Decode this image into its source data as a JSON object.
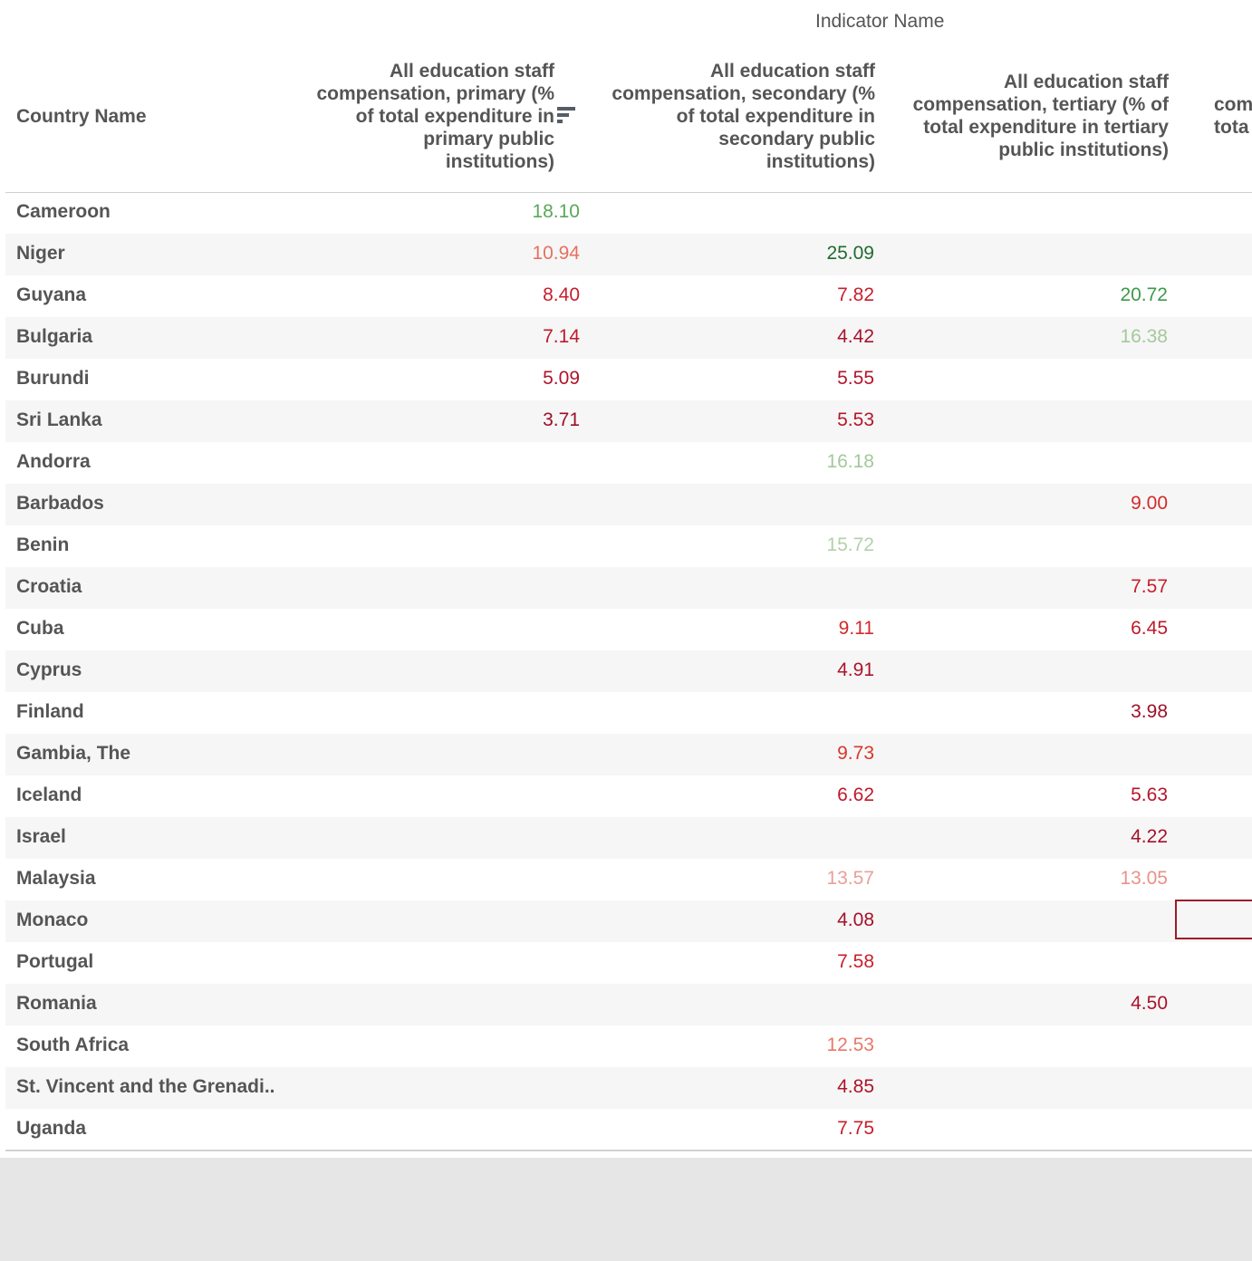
{
  "header": {
    "title": "Indicator Name",
    "row_header": "Country Name",
    "columns": [
      "All education staff compensation, primary (% of total expenditure in primary public institutions)",
      "All education staff compensation, secondary (% of total expenditure in secondary public institutions)",
      "All education staff compensation, tertiary (% of total expenditure in tertiary public institutions)",
      "com tota"
    ],
    "column_lines": [
      [
        "All education staff",
        "compensation, primary (%",
        "of total expenditure in",
        "primary public",
        "institutions)"
      ],
      [
        "All education staff",
        "compensation, secondary (%",
        "of total expenditure in",
        "secondary public",
        "institutions)"
      ],
      [
        "All education staff",
        "compensation, tertiary (% of",
        "total expenditure in tertiary",
        "public institutions)"
      ],
      [
        "com",
        "tota"
      ]
    ]
  },
  "colors": {
    "dark_green": "#1e7b3a",
    "green": "#5aa75a",
    "light_green": "#a3c99b",
    "light_red": "#e8a09a",
    "salmon": "#e8705f",
    "red": "#d9392b",
    "dark_red": "#b2182b"
  },
  "chart_data": {
    "type": "table",
    "title": "Indicator Name",
    "row_label": "Country Name",
    "columns": [
      "All education staff compensation, primary (% of total expenditure in primary public institutions)",
      "All education staff compensation, secondary (% of total expenditure in secondary public institutions)",
      "All education staff compensation, tertiary (% of total expenditure in tertiary public institutions)"
    ],
    "rows": [
      {
        "country": "Cameroon",
        "values": [
          "18.10",
          "",
          ""
        ],
        "colors": [
          "#5aa75a",
          "",
          ""
        ]
      },
      {
        "country": "Niger",
        "values": [
          "10.94",
          "25.09",
          ""
        ],
        "colors": [
          "#e8705f",
          "#1e6b2e",
          ""
        ]
      },
      {
        "country": "Guyana",
        "values": [
          "8.40",
          "7.82",
          "20.72"
        ],
        "colors": [
          "#c81e2c",
          "#c81e2c",
          "#3d9a4a"
        ]
      },
      {
        "country": "Bulgaria",
        "values": [
          "7.14",
          "4.42",
          "16.38"
        ],
        "colors": [
          "#c2182b",
          "#a9132b",
          "#a3c99b"
        ]
      },
      {
        "country": "Burundi",
        "values": [
          "5.09",
          "5.55",
          ""
        ],
        "colors": [
          "#b0142b",
          "#b5162b",
          ""
        ]
      },
      {
        "country": "Sri Lanka",
        "values": [
          "3.71",
          "5.53",
          ""
        ],
        "colors": [
          "#9c0f28",
          "#b5162b",
          ""
        ]
      },
      {
        "country": "Andorra",
        "values": [
          "",
          "16.18",
          ""
        ],
        "colors": [
          "",
          "#a3c99b",
          ""
        ]
      },
      {
        "country": "Barbados",
        "values": [
          "",
          "",
          "9.00"
        ],
        "colors": [
          "",
          "",
          "#d42a2a"
        ]
      },
      {
        "country": "Benin",
        "values": [
          "",
          "15.72",
          ""
        ],
        "colors": [
          "",
          "#b2d1ab",
          ""
        ]
      },
      {
        "country": "Croatia",
        "values": [
          "",
          "",
          "7.57"
        ],
        "colors": [
          "",
          "",
          "#c81e2c"
        ]
      },
      {
        "country": "Cuba",
        "values": [
          "",
          "9.11",
          "6.45"
        ],
        "colors": [
          "",
          "#d42a2a",
          "#bf1a2b"
        ]
      },
      {
        "country": "Cyprus",
        "values": [
          "",
          "4.91",
          ""
        ],
        "colors": [
          "",
          "#ad132b",
          ""
        ]
      },
      {
        "country": "Finland",
        "values": [
          "",
          "",
          "3.98"
        ],
        "colors": [
          "",
          "",
          "#9e1028"
        ]
      },
      {
        "country": "Gambia, The",
        "values": [
          "",
          "9.73",
          ""
        ],
        "colors": [
          "",
          "#d8382b",
          ""
        ]
      },
      {
        "country": "Iceland",
        "values": [
          "",
          "6.62",
          "5.63"
        ],
        "colors": [
          "",
          "#bf1a2b",
          "#b5162b"
        ]
      },
      {
        "country": "Israel",
        "values": [
          "",
          "",
          "4.22"
        ],
        "colors": [
          "",
          "",
          "#a3122a"
        ]
      },
      {
        "country": "Malaysia",
        "values": [
          "",
          "13.57",
          "13.05"
        ],
        "colors": [
          "",
          "#e8a09a",
          "#e8928a"
        ]
      },
      {
        "country": "Monaco",
        "values": [
          "",
          "4.08",
          ""
        ],
        "colors": [
          "",
          "#a3122a",
          ""
        ]
      },
      {
        "country": "Portugal",
        "values": [
          "",
          "7.58",
          ""
        ],
        "colors": [
          "",
          "#c81e2c",
          ""
        ]
      },
      {
        "country": "Romania",
        "values": [
          "",
          "",
          "4.50"
        ],
        "colors": [
          "",
          "",
          "#a9132b"
        ]
      },
      {
        "country": "South Africa",
        "values": [
          "",
          "12.53",
          ""
        ],
        "colors": [
          "",
          "#e8786a",
          ""
        ]
      },
      {
        "country": "St. Vincent and the Grenadi..",
        "values": [
          "",
          "4.85",
          ""
        ],
        "colors": [
          "",
          "#ad132b",
          ""
        ]
      },
      {
        "country": "Uganda",
        "values": [
          "",
          "7.75",
          ""
        ],
        "colors": [
          "",
          "#c81e2c",
          ""
        ]
      }
    ]
  }
}
